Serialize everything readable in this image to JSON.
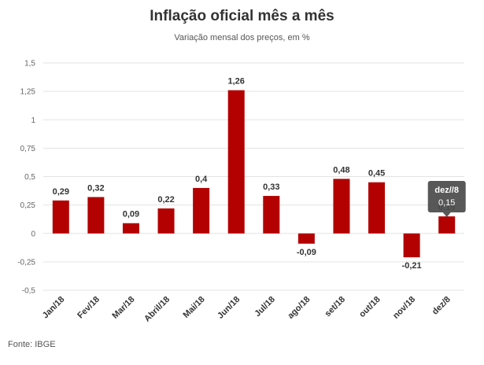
{
  "chart_data": {
    "type": "bar",
    "title": "Inflação oficial mês a mês",
    "subtitle": "Variação mensal dos preços, em %",
    "source": "Fonte: IBGE",
    "categories": [
      "Jan/18",
      "Fev/18",
      "Mar/18",
      "Abril/18",
      "Mai/18",
      "Jun/18",
      "Jul/18",
      "ago/18",
      "set/18",
      "out/18",
      "nov/18",
      "dez/8"
    ],
    "values": [
      0.29,
      0.32,
      0.09,
      0.22,
      0.4,
      1.26,
      0.33,
      -0.09,
      0.48,
      0.45,
      -0.21,
      0.15
    ],
    "value_labels": [
      "0,29",
      "0,32",
      "0,09",
      "0,22",
      "0,4",
      "1,26",
      "0,33",
      "-0,09",
      "0,48",
      "0,45",
      "-0,21",
      "0,15"
    ],
    "ylim": [
      -0.5,
      1.5
    ],
    "yticks": [
      -0.5,
      -0.25,
      0,
      0.25,
      0.5,
      0.75,
      1,
      1.25,
      1.5
    ],
    "ytick_labels": [
      "-0,5",
      "-0,25",
      "0",
      "0,25",
      "0,5",
      "0,75",
      "1",
      "1,25",
      "1,5"
    ],
    "grid": true,
    "bar_color": "#b30000",
    "tooltip": {
      "category": "dez//8",
      "value": "0,15",
      "index": 11
    }
  }
}
